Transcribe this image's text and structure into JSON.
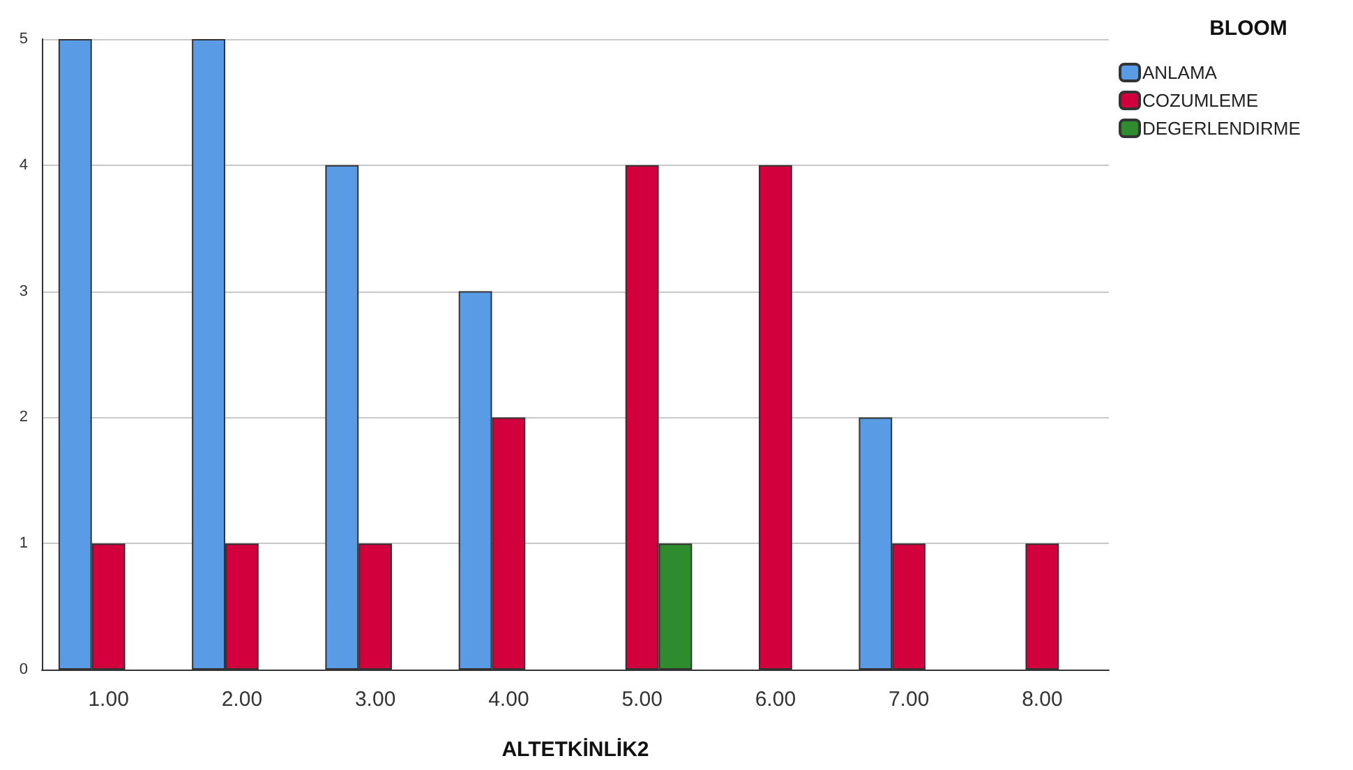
{
  "chart_data": {
    "type": "bar",
    "xlabel": "ALTETKİNLİK2",
    "legend_title": "BLOOM",
    "categories": [
      "1.00",
      "2.00",
      "3.00",
      "4.00",
      "5.00",
      "6.00",
      "7.00",
      "8.00"
    ],
    "series": [
      {
        "name": "ANLAMA",
        "color": "#5a9be6",
        "values": [
          5,
          5,
          4,
          3,
          null,
          null,
          2,
          null
        ]
      },
      {
        "name": "COZUMLEME",
        "color": "#d2003c",
        "values": [
          1,
          1,
          1,
          2,
          4,
          4,
          1,
          1
        ]
      },
      {
        "name": "DEGERLENDIRME",
        "color": "#2e8b2e",
        "values": [
          null,
          null,
          null,
          null,
          1,
          null,
          null,
          null
        ]
      }
    ],
    "ylim": [
      0,
      5
    ],
    "yticks": [
      0,
      1,
      2,
      3,
      4,
      5
    ],
    "grid": "y",
    "legend": "top right"
  }
}
